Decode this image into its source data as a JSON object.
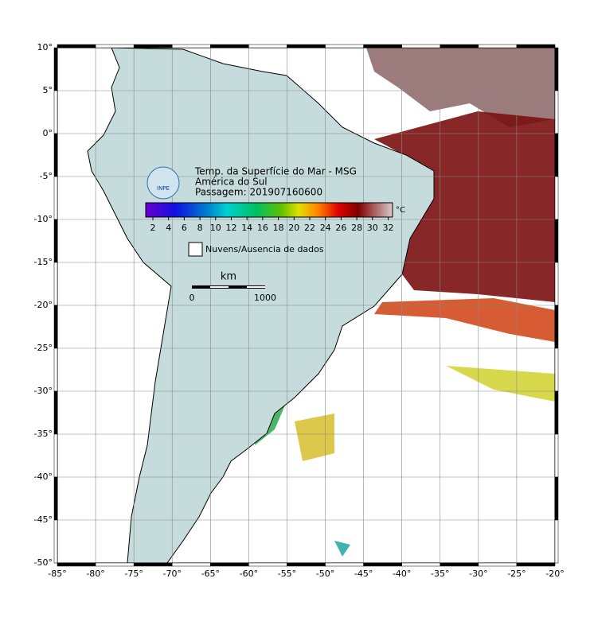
{
  "title_lines": [
    "Temp. da Superfície do Mar - MSG",
    "América do Sul",
    "Passagem: 201907160600"
  ],
  "logo": "INPE",
  "colorbar": {
    "ticks": [
      2,
      4,
      6,
      8,
      10,
      12,
      14,
      16,
      18,
      20,
      22,
      24,
      26,
      28,
      30,
      32
    ],
    "unit": "°C"
  },
  "legend": "Nuvens/Ausencia de dados",
  "scale_bar": {
    "unit": "km",
    "labels": [
      "0",
      "1000"
    ]
  },
  "lat_labels": [
    "10°",
    "5°",
    "0°",
    "-5°",
    "-10°",
    "-15°",
    "-20°",
    "-25°",
    "-30°",
    "-35°",
    "-40°",
    "-45°",
    "-50°"
  ],
  "lon_labels": [
    "-85°",
    "-80°",
    "-75°",
    "-70°",
    "-65°",
    "-60°",
    "-55°",
    "-50°",
    "-45°",
    "-40°",
    "-35°",
    "-30°",
    "-25°",
    "-20°"
  ]
}
